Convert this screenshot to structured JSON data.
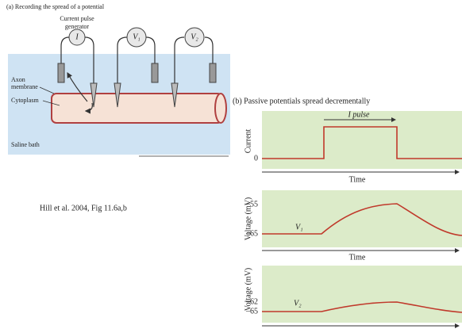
{
  "panel_a": {
    "title": "(a) Recording the spread of a potential",
    "generator_label_1": "Current pulse",
    "generator_label_2": "generator",
    "meters": [
      "I",
      "V₁",
      "V₂"
    ],
    "labels": [
      "Axon",
      "membrane",
      "Cytoplasm",
      "Saline bath"
    ]
  },
  "caption": "Hill et al. 2004, Fig 11.6a,b",
  "panel_b": {
    "title": "(b) Passive potentials spread decrementally",
    "plots": [
      {
        "y_label": "Current",
        "ticks": [
          "0"
        ],
        "annotation": "I pulse",
        "x_label": "Time"
      },
      {
        "y_label": "Voltage (mV)",
        "ticks": [
          "–55",
          "–65"
        ],
        "trace_label": "V₁",
        "x_label": "Time"
      },
      {
        "y_label": "Voltage (mV)",
        "ticks": [
          "–62",
          "–65"
        ],
        "trace_label": "V₂"
      }
    ]
  }
}
